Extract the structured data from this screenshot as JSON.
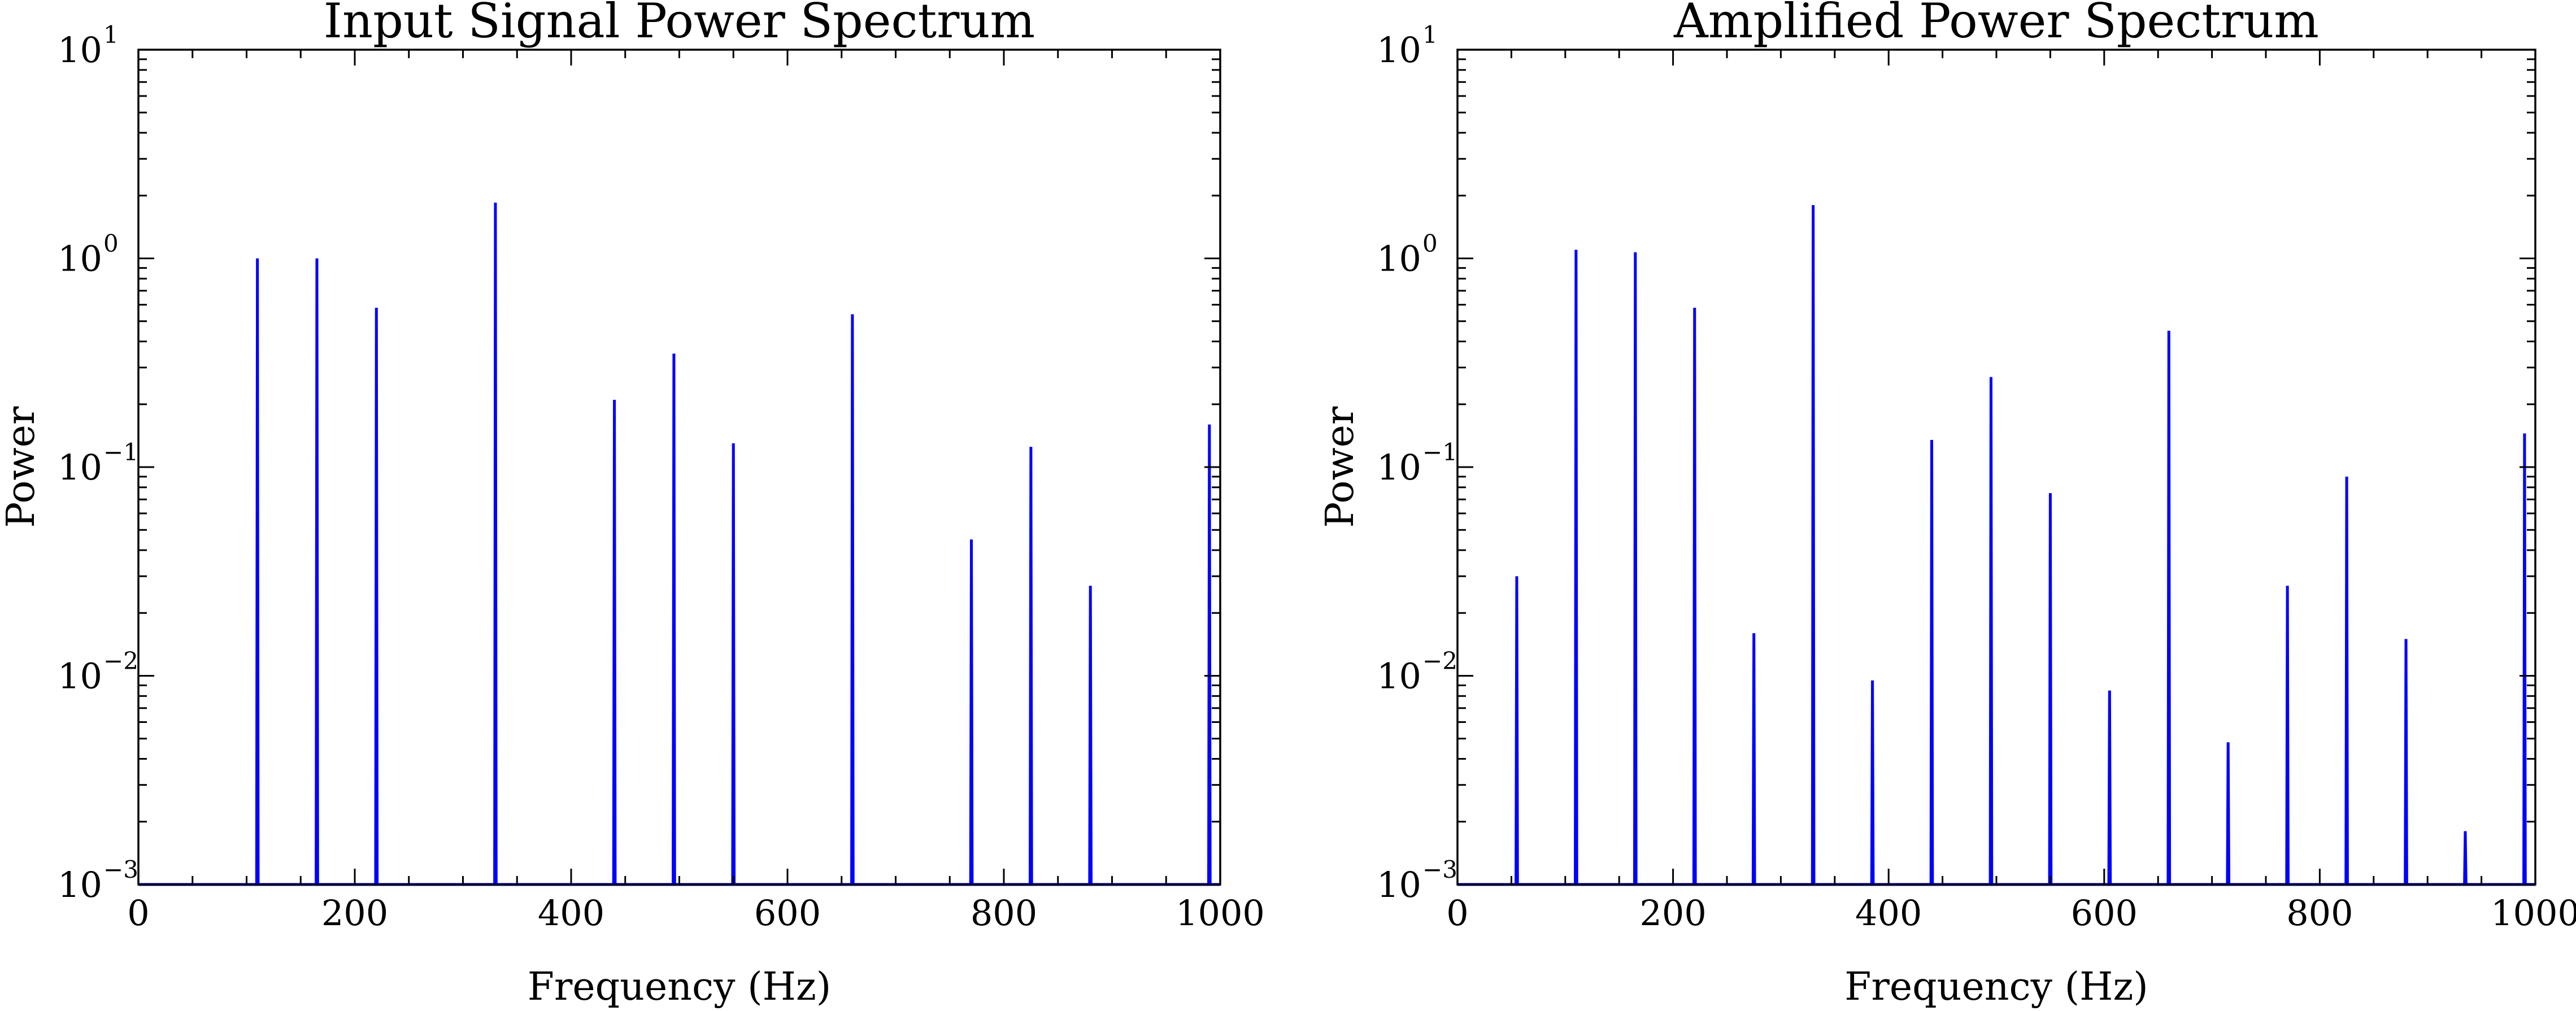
{
  "chart_data": [
    {
      "type": "line",
      "title": "Input Signal Power Spectrum",
      "xlabel": "Frequency (Hz)",
      "ylabel": "Power",
      "xlim": [
        0,
        1000
      ],
      "ylim": [
        0.001,
        10
      ],
      "yscale": "log",
      "xticks": [
        "0",
        "200",
        "400",
        "600",
        "800",
        "1000"
      ],
      "yticks": [
        {
          "base": "10",
          "exp": "−3"
        },
        {
          "base": "10",
          "exp": "−2"
        },
        {
          "base": "10",
          "exp": "−1"
        },
        {
          "base": "10",
          "exp": "0"
        },
        {
          "base": "10",
          "exp": "1"
        }
      ],
      "grid": false,
      "line_color": "#0000ff",
      "peaks": [
        {
          "x": 110,
          "y": 1.0
        },
        {
          "x": 165,
          "y": 1.0
        },
        {
          "x": 220,
          "y": 0.58
        },
        {
          "x": 330,
          "y": 1.85
        },
        {
          "x": 440,
          "y": 0.21
        },
        {
          "x": 495,
          "y": 0.35
        },
        {
          "x": 550,
          "y": 0.13
        },
        {
          "x": 660,
          "y": 0.54
        },
        {
          "x": 770,
          "y": 0.045
        },
        {
          "x": 825,
          "y": 0.125
        },
        {
          "x": 880,
          "y": 0.027
        },
        {
          "x": 990,
          "y": 0.16
        }
      ]
    },
    {
      "type": "line",
      "title": "Amplified Power Spectrum",
      "xlabel": "Frequency (Hz)",
      "ylabel": "Power",
      "xlim": [
        0,
        1000
      ],
      "ylim": [
        0.001,
        10
      ],
      "yscale": "log",
      "xticks": [
        "0",
        "200",
        "400",
        "600",
        "800",
        "1000"
      ],
      "yticks": [
        {
          "base": "10",
          "exp": "−3"
        },
        {
          "base": "10",
          "exp": "−2"
        },
        {
          "base": "10",
          "exp": "−1"
        },
        {
          "base": "10",
          "exp": "0"
        },
        {
          "base": "10",
          "exp": "1"
        }
      ],
      "grid": false,
      "line_color": "#0000ff",
      "peaks": [
        {
          "x": 55,
          "y": 0.03
        },
        {
          "x": 110,
          "y": 1.1
        },
        {
          "x": 165,
          "y": 1.07
        },
        {
          "x": 220,
          "y": 0.58
        },
        {
          "x": 275,
          "y": 0.016
        },
        {
          "x": 330,
          "y": 1.8
        },
        {
          "x": 385,
          "y": 0.0095
        },
        {
          "x": 440,
          "y": 0.135
        },
        {
          "x": 495,
          "y": 0.27
        },
        {
          "x": 550,
          "y": 0.075
        },
        {
          "x": 605,
          "y": 0.0085
        },
        {
          "x": 660,
          "y": 0.45
        },
        {
          "x": 715,
          "y": 0.0048
        },
        {
          "x": 770,
          "y": 0.027
        },
        {
          "x": 825,
          "y": 0.09
        },
        {
          "x": 880,
          "y": 0.015
        },
        {
          "x": 935,
          "y": 0.0018
        },
        {
          "x": 990,
          "y": 0.145
        }
      ]
    }
  ]
}
